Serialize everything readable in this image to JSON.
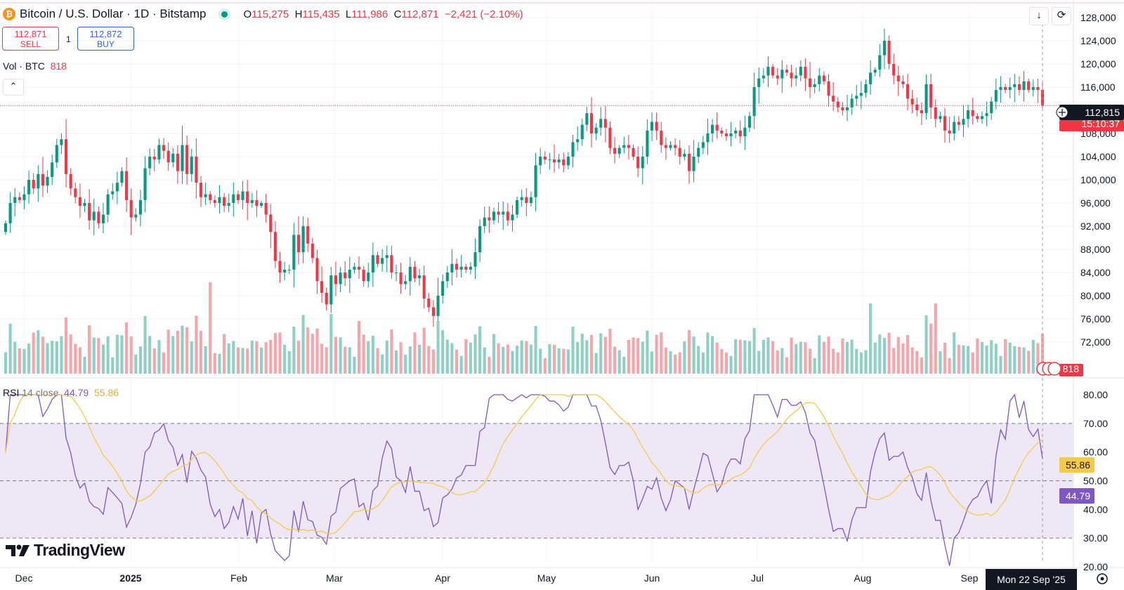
{
  "header": {
    "symbol": "Bitcoin / U.S. Dollar · 1D · Bitstamp",
    "symbol_icon": "₿",
    "o_label": "O",
    "o_value": "115,275",
    "h_label": "H",
    "h_value": "115,435",
    "l_label": "L",
    "l_value": "111,986",
    "c_label": "C",
    "c_value": "112,871",
    "change": "−2,421 (−2.10%)"
  },
  "trade": {
    "sell_price": "112,871",
    "sell_label": "SELL",
    "spread": "1",
    "buy_price": "112,872",
    "buy_label": "BUY"
  },
  "vol_label": {
    "name": "Vol · BTC",
    "value": "818"
  },
  "rsi_label": {
    "name": "RSI",
    "params": "14 close",
    "value": "44.79",
    "ma_value": "55.86"
  },
  "brand": "TradingView",
  "price_badge": "112,815",
  "countdown": "15:10:37",
  "vol_badge": "818",
  "rsi_badge": "44.79",
  "rsi_ma_badge": "55.86",
  "crosshair_date": "Mon 22 Sep '25",
  "colors": {
    "up": "#089981",
    "down": "#f23645",
    "vol_up": "#8fd0c5",
    "vol_down": "#f6a5ab",
    "rsi": "#7e57c2",
    "rsi_ma": "#f7c948",
    "rsi_band": "#ede7f6"
  },
  "chart_data": [
    {
      "type": "candlestick",
      "title": "Bitcoin / U.S. Dollar · 1D · Bitstamp",
      "x_ticks": [
        "Dec",
        "2025",
        "Feb",
        "Mar",
        "Apr",
        "May",
        "Jun",
        "Jul",
        "Aug",
        "Sep"
      ],
      "y_ticks": [
        "128,000",
        "124,000",
        "120,000",
        "116,000",
        "112,000",
        "108,000",
        "104,000",
        "100,000",
        "96,000",
        "92,000",
        "88,000",
        "84,000",
        "80,000",
        "76,000",
        "72,000"
      ],
      "ylim": [
        72000,
        128000
      ],
      "current_price": 112815,
      "closes": [
        92500,
        96000,
        97000,
        96500,
        97500,
        100000,
        98500,
        101000,
        99000,
        100500,
        103000,
        106000,
        107000,
        101000,
        98500,
        97000,
        95500,
        96000,
        93000,
        94500,
        92500,
        94000,
        97500,
        98000,
        99500,
        101500,
        96500,
        93500,
        94000,
        96500,
        102000,
        104000,
        103500,
        106000,
        105000,
        103000,
        104500,
        101500,
        106000,
        101000,
        104000,
        99500,
        97000,
        97500,
        96500,
        96000,
        97000,
        95500,
        96000,
        97500,
        96500,
        98000,
        96000,
        96500,
        95500,
        96000,
        94000,
        91000,
        86000,
        84000,
        84500,
        84500,
        90500,
        87500,
        92000,
        89000,
        86500,
        82500,
        80500,
        78500,
        83500,
        82000,
        84000,
        83000,
        84500,
        85000,
        84500,
        82500,
        84000,
        87000,
        85500,
        86500,
        87000,
        84000,
        84000,
        82000,
        82500,
        85000,
        83000,
        83500,
        79500,
        78000,
        76500,
        80000,
        82500,
        84000,
        85500,
        84500,
        85000,
        84500,
        85000,
        87500,
        92000,
        93500,
        93000,
        94500,
        94000,
        94500,
        93000,
        94000,
        96500,
        97000,
        96000,
        97000,
        102500,
        104000,
        103500,
        103500,
        103000,
        103500,
        102500,
        104000,
        106500,
        107000,
        109500,
        111500,
        108000,
        109000,
        110500,
        109000,
        105500,
        104500,
        105500,
        106000,
        105500,
        104000,
        102000,
        104000,
        108500,
        110000,
        108500,
        106000,
        105500,
        106000,
        105500,
        104000,
        104500,
        101500,
        104000,
        105500,
        106500,
        108000,
        109500,
        108500,
        108000,
        107500,
        108000,
        108500,
        107500,
        109000,
        111000,
        116000,
        117500,
        118000,
        119500,
        118000,
        117500,
        119000,
        118500,
        117500,
        118000,
        119500,
        117500,
        116000,
        116500,
        118000,
        117000,
        114500,
        113500,
        112500,
        112000,
        112500,
        114000,
        114500,
        115000,
        116500,
        118500,
        119000,
        121500,
        124000,
        120000,
        118000,
        117000,
        116500,
        114000,
        113000,
        112000,
        111500,
        116500,
        112500,
        110500,
        111000,
        108500,
        108000,
        110000,
        109500,
        110500,
        112000,
        111000,
        110500,
        111000,
        111500,
        113500,
        115500,
        116000,
        115500,
        116000,
        116500,
        115500,
        117000,
        115500,
        116000,
        115500,
        112800
      ],
      "rsi": {
        "name": "RSI 14 close",
        "value": 44.79,
        "ma": 55.86,
        "y_ticks": [
          "80.00",
          "70.00",
          "60.00",
          "50.00",
          "40.00",
          "30.00",
          "20.00"
        ],
        "ylim": [
          20,
          80
        ],
        "bands": [
          30,
          50,
          70
        ]
      },
      "volume": {
        "name": "Vol · BTC",
        "value": 818
      }
    }
  ]
}
